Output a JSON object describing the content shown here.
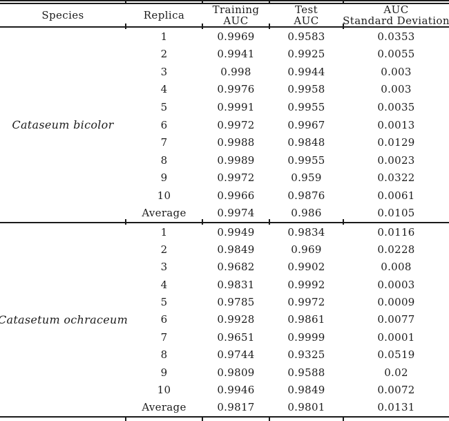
{
  "table": {
    "colors": {
      "text": "#1c1c1c",
      "rule": "#1a1a1a",
      "background": "#ffffff"
    },
    "headers": [
      {
        "id": "species",
        "lines": [
          "Species"
        ]
      },
      {
        "id": "replica",
        "lines": [
          "Replica"
        ]
      },
      {
        "id": "training_auc",
        "lines": [
          "Training",
          "AUC"
        ]
      },
      {
        "id": "test_auc",
        "lines": [
          "Test",
          "AUC"
        ]
      },
      {
        "id": "auc_sd",
        "lines": [
          "AUC",
          "Standard Deviation"
        ]
      }
    ],
    "groups": [
      {
        "species": "Cataseum bicolor",
        "rows": [
          {
            "replica": "1",
            "training_auc": "0.9969",
            "test_auc": "0.9583",
            "auc_sd": "0.0353"
          },
          {
            "replica": "2",
            "training_auc": "0.9941",
            "test_auc": "0.9925",
            "auc_sd": "0.0055"
          },
          {
            "replica": "3",
            "training_auc": "0.998",
            "test_auc": "0.9944",
            "auc_sd": "0.003"
          },
          {
            "replica": "4",
            "training_auc": "0.9976",
            "test_auc": "0.9958",
            "auc_sd": "0.003"
          },
          {
            "replica": "5",
            "training_auc": "0.9991",
            "test_auc": "0.9955",
            "auc_sd": "0.0035"
          },
          {
            "replica": "6",
            "training_auc": "0.9972",
            "test_auc": "0.9967",
            "auc_sd": "0.0013"
          },
          {
            "replica": "7",
            "training_auc": "0.9988",
            "test_auc": "0.9848",
            "auc_sd": "0.0129"
          },
          {
            "replica": "8",
            "training_auc": "0.9989",
            "test_auc": "0.9955",
            "auc_sd": "0.0023"
          },
          {
            "replica": "9",
            "training_auc": "0.9972",
            "test_auc": "0.959",
            "auc_sd": "0.0322"
          },
          {
            "replica": "10",
            "training_auc": "0.9966",
            "test_auc": "0.9876",
            "auc_sd": "0.0061"
          },
          {
            "replica": "Average",
            "training_auc": "0.9974",
            "test_auc": "0.986",
            "auc_sd": "0.0105"
          }
        ]
      },
      {
        "species": "Catasetum ochraceum",
        "rows": [
          {
            "replica": "1",
            "training_auc": "0.9949",
            "test_auc": "0.9834",
            "auc_sd": "0.0116"
          },
          {
            "replica": "2",
            "training_auc": "0.9849",
            "test_auc": "0.969",
            "auc_sd": "0.0228"
          },
          {
            "replica": "3",
            "training_auc": "0.9682",
            "test_auc": "0.9902",
            "auc_sd": "0.008"
          },
          {
            "replica": "4",
            "training_auc": "0.9831",
            "test_auc": "0.9992",
            "auc_sd": "0.0003"
          },
          {
            "replica": "5",
            "training_auc": "0.9785",
            "test_auc": "0.9972",
            "auc_sd": "0.0009"
          },
          {
            "replica": "6",
            "training_auc": "0.9928",
            "test_auc": "0.9861",
            "auc_sd": "0.0077"
          },
          {
            "replica": "7",
            "training_auc": "0.9651",
            "test_auc": "0.9999",
            "auc_sd": "0.0001"
          },
          {
            "replica": "8",
            "training_auc": "0.9744",
            "test_auc": "0.9325",
            "auc_sd": "0.0519"
          },
          {
            "replica": "9",
            "training_auc": "0.9809",
            "test_auc": "0.9588",
            "auc_sd": "0.02"
          },
          {
            "replica": "10",
            "training_auc": "0.9946",
            "test_auc": "0.9849",
            "auc_sd": "0.0072"
          },
          {
            "replica": "Average",
            "training_auc": "0.9817",
            "test_auc": "0.9801",
            "auc_sd": "0.0131"
          }
        ]
      }
    ]
  }
}
